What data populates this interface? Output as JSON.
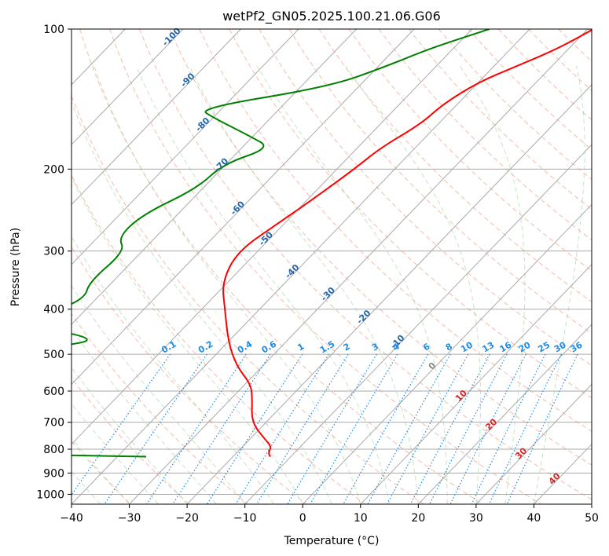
{
  "chart_data": {
    "type": "line",
    "title": "wetPf2_GN05.2025.100.21.06.G06",
    "xlabel": "Temperature (°C)",
    "ylabel": "Pressure (hPa)",
    "xlim": [
      -40,
      50
    ],
    "ylim": [
      1050,
      100
    ],
    "y_scale": "log",
    "grid": true,
    "x_ticks": [
      -40,
      -30,
      -20,
      -10,
      0,
      10,
      20,
      30,
      40,
      50
    ],
    "y_ticks": [
      100,
      200,
      300,
      400,
      500,
      600,
      700,
      800,
      900,
      1000
    ],
    "series": [
      {
        "color": "#ff0000",
        "points": [
          [
            -29.0,
            100
          ],
          [
            -31.8,
            110
          ],
          [
            -36.0,
            120
          ],
          [
            -40.0,
            130
          ],
          [
            -42.5,
            145
          ],
          [
            -43.0,
            160
          ],
          [
            -46.0,
            180
          ],
          [
            -47.0,
            200
          ],
          [
            -49.0,
            230
          ],
          [
            -51.0,
            260
          ],
          [
            -53.5,
            300
          ],
          [
            -51.0,
            350
          ],
          [
            -46.0,
            400
          ],
          [
            -40.0,
            470
          ],
          [
            -34.5,
            530
          ],
          [
            -29.0,
            580
          ],
          [
            -26.5,
            620
          ],
          [
            -22.5,
            700
          ],
          [
            -17.5,
            760
          ],
          [
            -15.0,
            790
          ],
          [
            -14.5,
            815
          ],
          [
            -13.5,
            830
          ]
        ]
      },
      {
        "color": "#008000",
        "points": [
          [
            -47.0,
            100
          ],
          [
            -54.0,
            110
          ],
          [
            -58.5,
            120
          ],
          [
            -65.0,
            133
          ],
          [
            -84.0,
            148
          ],
          [
            -80.0,
            155
          ],
          [
            -70.5,
            170
          ],
          [
            -65.0,
            180
          ],
          [
            -70.5,
            195
          ],
          [
            -71.0,
            220
          ],
          [
            -76.0,
            250
          ],
          [
            -76.5,
            280
          ],
          [
            -73.0,
            300
          ],
          [
            -74.0,
            350
          ],
          [
            -72.0,
            380
          ],
          [
            -76.0,
            410
          ],
          [
            -73.5,
            440
          ],
          [
            -63.0,
            465
          ],
          [
            -68.0,
            480
          ],
          [
            -82.0,
            520
          ],
          [
            -95.0,
            570
          ],
          [
            -110.0,
            605
          ],
          [
            -80.0,
            630
          ],
          [
            -70.0,
            680
          ],
          [
            -62.0,
            705
          ],
          [
            -65.0,
            740
          ],
          [
            -73.0,
            775
          ],
          [
            -84.0,
            800
          ],
          [
            -60.0,
            820
          ],
          [
            -35.0,
            830
          ]
        ]
      }
    ],
    "dry_adiabats_label": "dashed dry adiabats",
    "isotherm_labels": [
      "-100",
      "-90",
      "-80",
      "-70",
      "-60",
      "-50",
      "-40",
      "-30",
      "-20",
      "-10",
      "0",
      "10",
      "20",
      "30",
      "40"
    ],
    "mixing_ratio_labels": [
      "0.1",
      "0.2",
      "0.4",
      "0.6",
      "1",
      "1.5",
      "2",
      "3",
      "4",
      "6",
      "8",
      "10",
      "13",
      "16",
      "20",
      "25",
      "30",
      "36"
    ],
    "mixing_ratio_values": [
      0.1,
      0.2,
      0.4,
      0.6,
      1,
      1.5,
      2,
      3,
      4,
      6,
      8,
      10,
      13,
      16,
      20,
      25,
      30,
      36
    ]
  }
}
